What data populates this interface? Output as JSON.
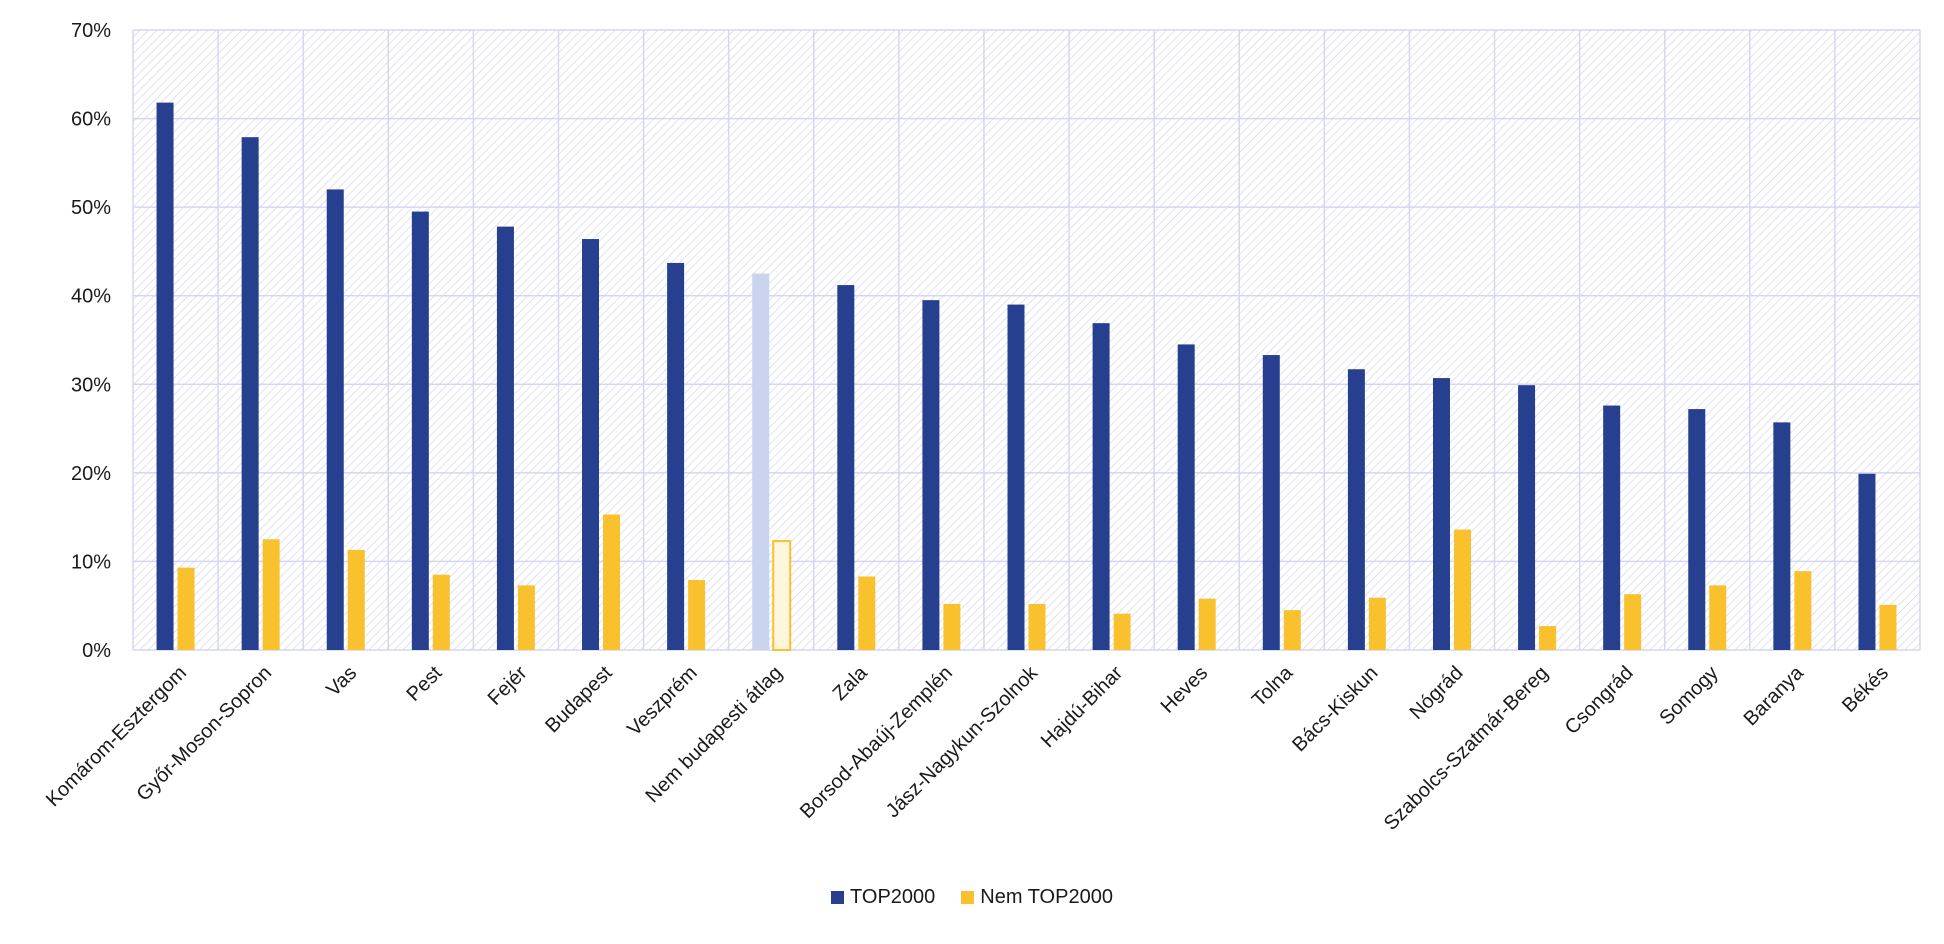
{
  "colors": {
    "top2000": "#263f8e",
    "not_top2000": "#f9c12e",
    "avg_top2000": "#cbd4ee",
    "avg_not_top2000": "#f9c12e",
    "grid": "#d6d6f0",
    "hatch": "#cfcfe8"
  },
  "legend": {
    "series1": "TOP2000",
    "series2": "Nem TOP2000"
  },
  "chart_data": {
    "type": "bar",
    "title": "",
    "xlabel": "",
    "ylabel": "",
    "ylim": [
      0,
      70
    ],
    "yticks": [
      0,
      10,
      20,
      30,
      40,
      50,
      60,
      70
    ],
    "ytick_labels": [
      "0%",
      "10%",
      "20%",
      "30%",
      "40%",
      "50%",
      "60%",
      "70%"
    ],
    "grid": true,
    "legend_position": "bottom-center",
    "highlight_category": "Nem budapesti átlag",
    "categories": [
      "Komárom-Esztergom",
      "Győr-Moson-Sopron",
      "Vas",
      "Pest",
      "Fejér",
      "Budapest",
      "Veszprém",
      "Nem budapesti átlag",
      "Zala",
      "Borsod-Abaúj-Zemplén",
      "Jász-Nagykun-Szolnok",
      "Hajdú-Bihar",
      "Heves",
      "Tolna",
      "Bács-Kiskun",
      "Nógrád",
      "Szabolcs-Szatmár-Bereg",
      "Csongrád",
      "Somogy",
      "Baranya",
      "Békés"
    ],
    "series": [
      {
        "name": "TOP2000",
        "values": [
          61.8,
          57.9,
          52.0,
          49.5,
          47.8,
          46.4,
          43.7,
          42.5,
          41.2,
          39.5,
          39.0,
          36.9,
          34.5,
          33.3,
          31.7,
          30.7,
          29.9,
          27.6,
          27.2,
          25.7,
          19.9
        ]
      },
      {
        "name": "Nem TOP2000",
        "values": [
          9.3,
          12.5,
          11.3,
          8.5,
          7.3,
          15.3,
          7.9,
          12.3,
          8.3,
          5.2,
          5.2,
          4.1,
          5.8,
          4.5,
          5.9,
          13.6,
          2.7,
          6.3,
          7.3,
          8.9,
          5.1
        ]
      }
    ]
  }
}
